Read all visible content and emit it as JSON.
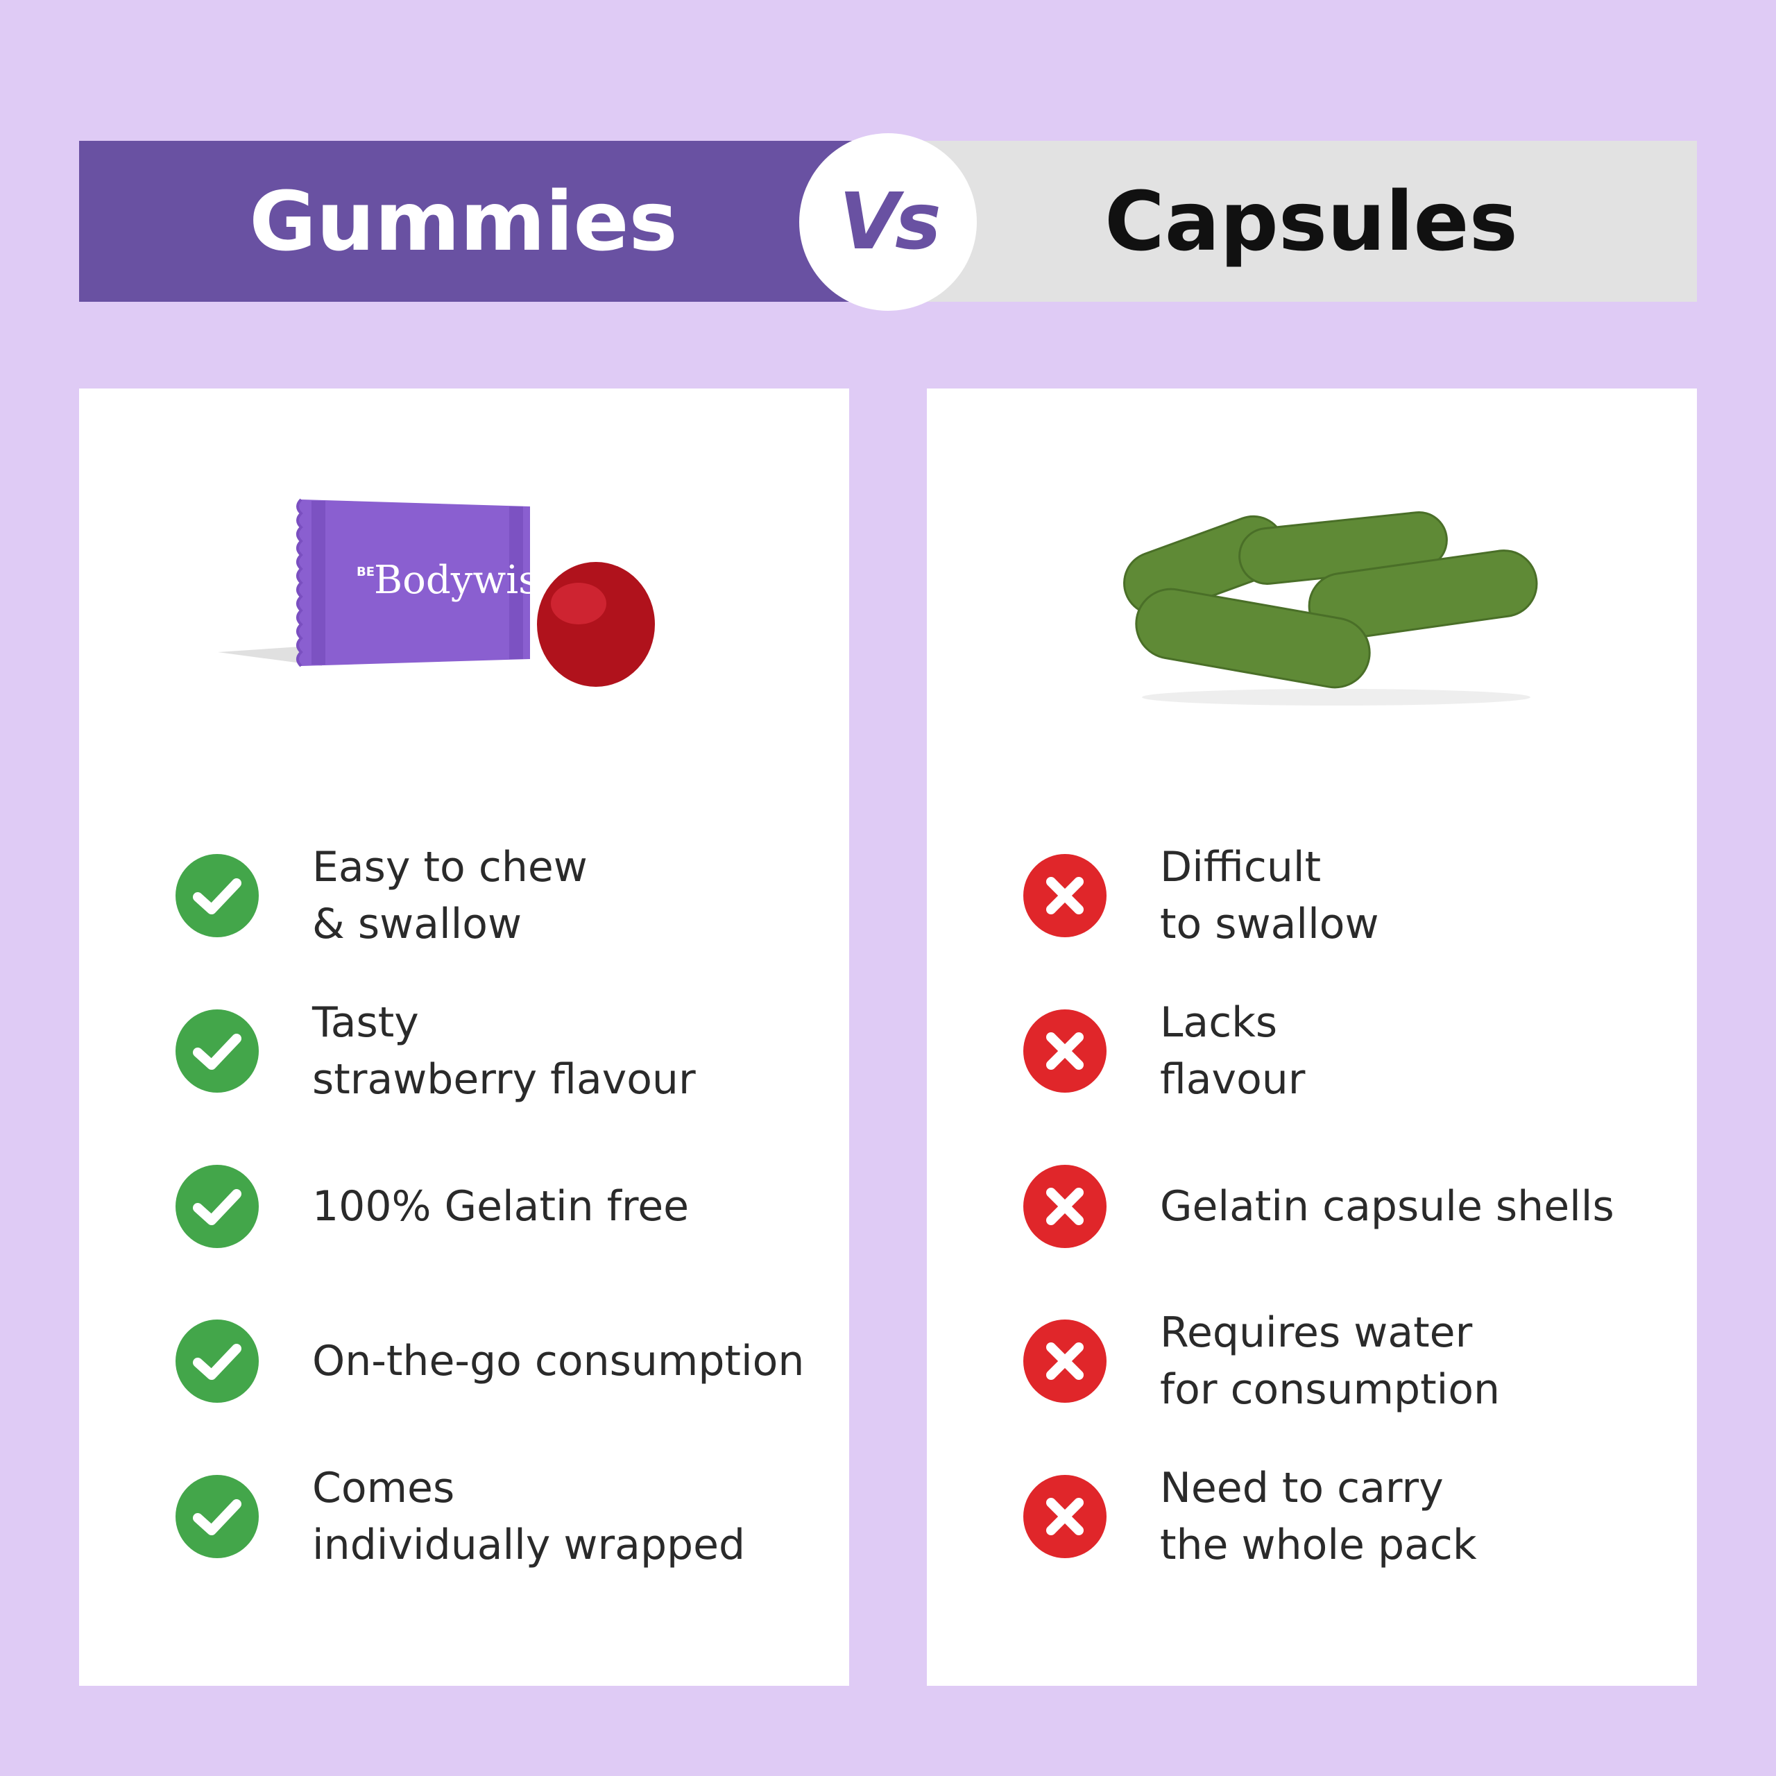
{
  "header": {
    "left_title": "Gummies",
    "vs_label": "Vs",
    "right_title": "Capsules"
  },
  "colors": {
    "background": "#dfcbf5",
    "purple": "#6951a2",
    "grey": "#e2e2e2",
    "check": "#43a64a",
    "cross": "#e0262a"
  },
  "gummies": {
    "image_brand": "BE Bodywise",
    "items": [
      {
        "icon": "check-icon",
        "line1": "Easy to chew",
        "line2": "& swallow"
      },
      {
        "icon": "check-icon",
        "line1": "Tasty",
        "line2": "strawberry flavour"
      },
      {
        "icon": "check-icon",
        "line1": "100% Gelatin free",
        "line2": ""
      },
      {
        "icon": "check-icon",
        "line1": "On-the-go consumption",
        "line2": ""
      },
      {
        "icon": "check-icon",
        "line1": "Comes",
        "line2": "individually wrapped"
      }
    ]
  },
  "capsules": {
    "items": [
      {
        "icon": "cross-icon",
        "line1": "Difficult",
        "line2": "to swallow"
      },
      {
        "icon": "cross-icon",
        "line1": "Lacks",
        "line2": "flavour"
      },
      {
        "icon": "cross-icon",
        "line1": "Gelatin capsule shells",
        "line2": ""
      },
      {
        "icon": "cross-icon",
        "line1": "Requires water",
        "line2": "for consumption"
      },
      {
        "icon": "cross-icon",
        "line1": "Need to carry",
        "line2": "the whole pack"
      }
    ]
  }
}
